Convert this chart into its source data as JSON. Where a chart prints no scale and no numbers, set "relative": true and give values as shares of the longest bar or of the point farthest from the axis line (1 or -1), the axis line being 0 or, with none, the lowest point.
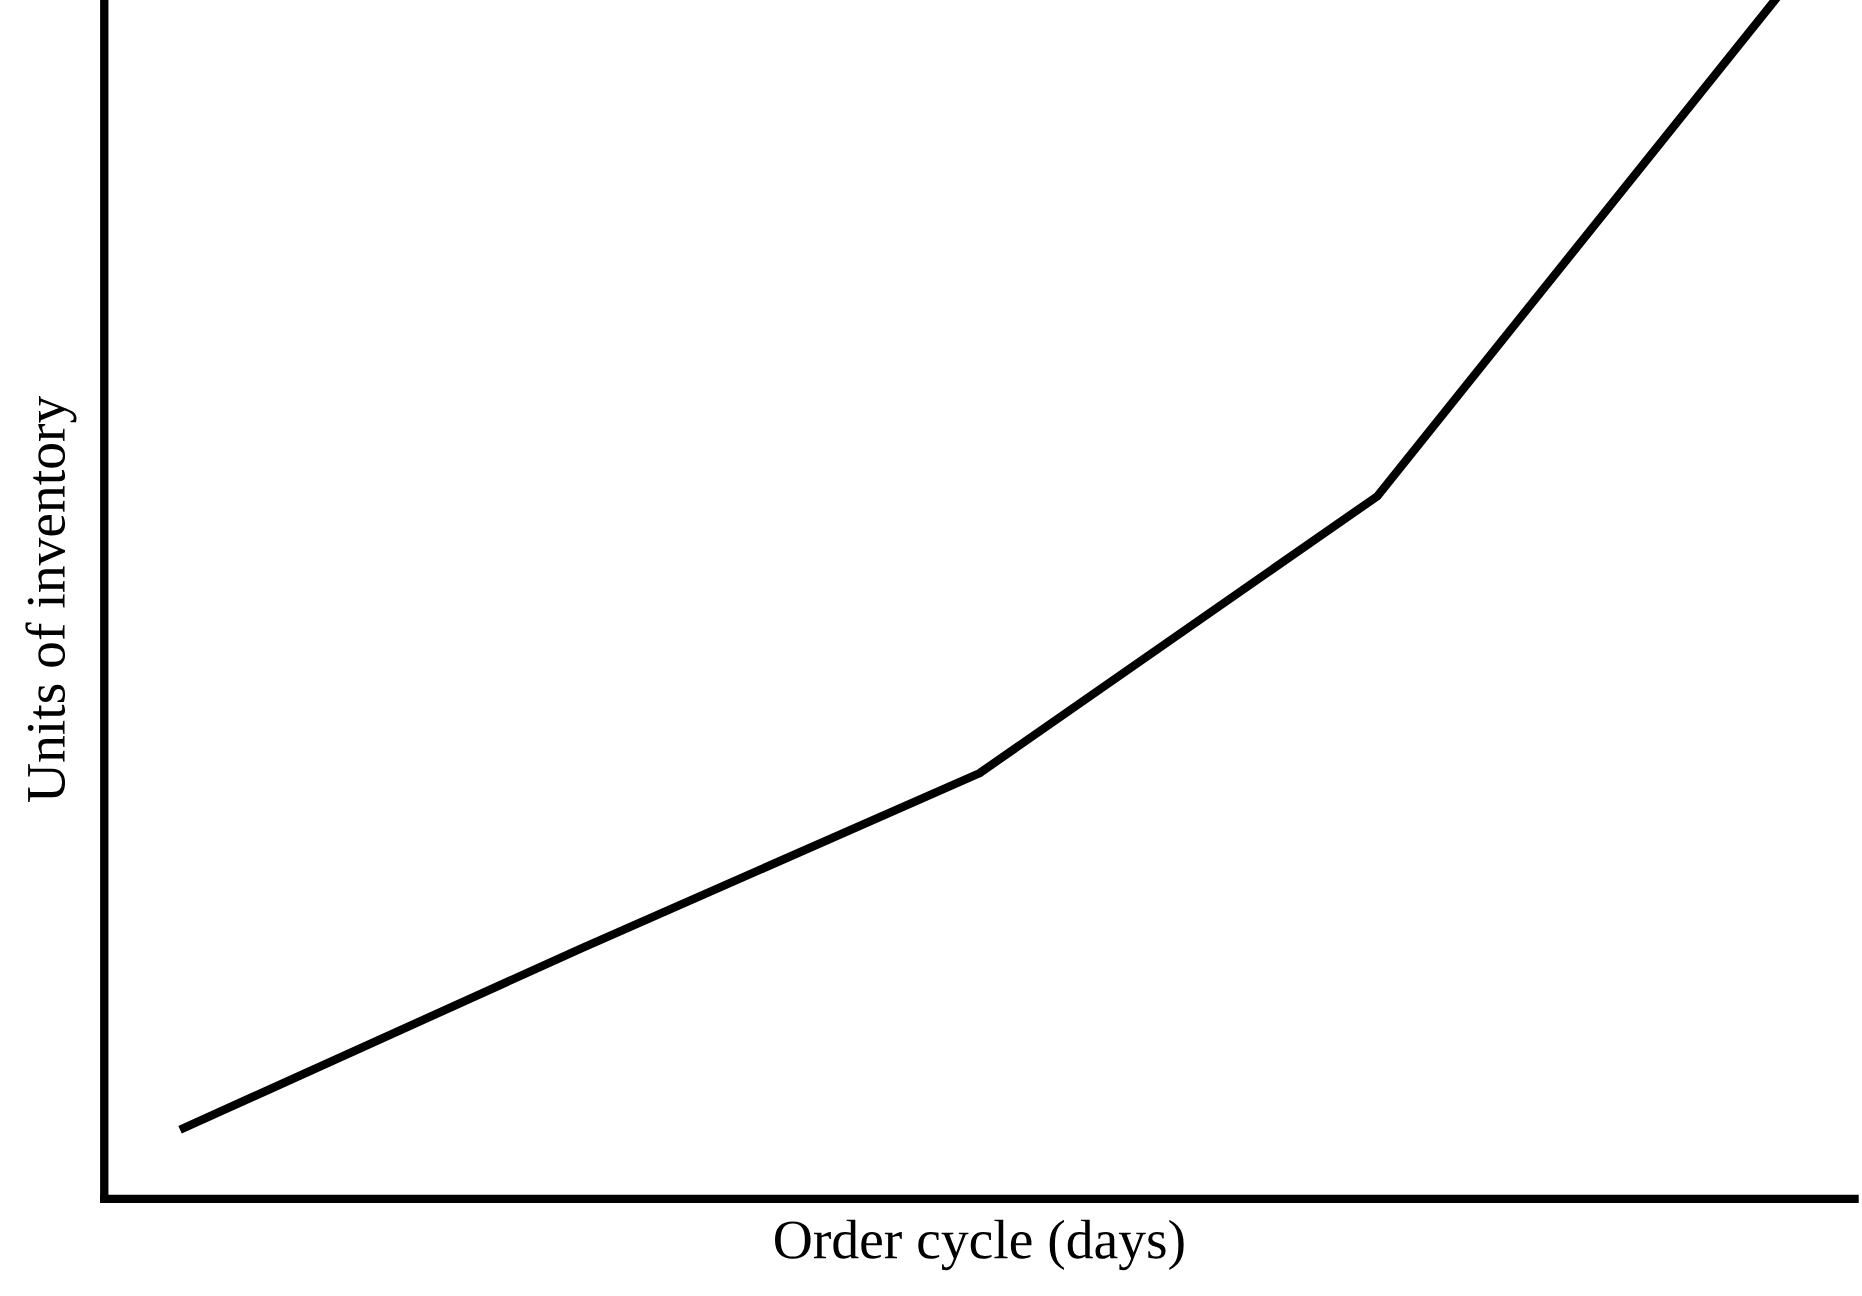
{
  "chart_data": {
    "type": "line",
    "relative": true,
    "xlabel": "Order cycle (days)",
    "ylabel": "Units of inventory",
    "categories": [
      null,
      null,
      null,
      null,
      null
    ],
    "series": [
      {
        "color": "#000000",
        "values": [
          0.059,
          0.209,
          0.355,
          0.586,
          1.0
        ]
      }
    ],
    "grid": false,
    "legend": false,
    "marker": "none",
    "line_style": "solid"
  }
}
